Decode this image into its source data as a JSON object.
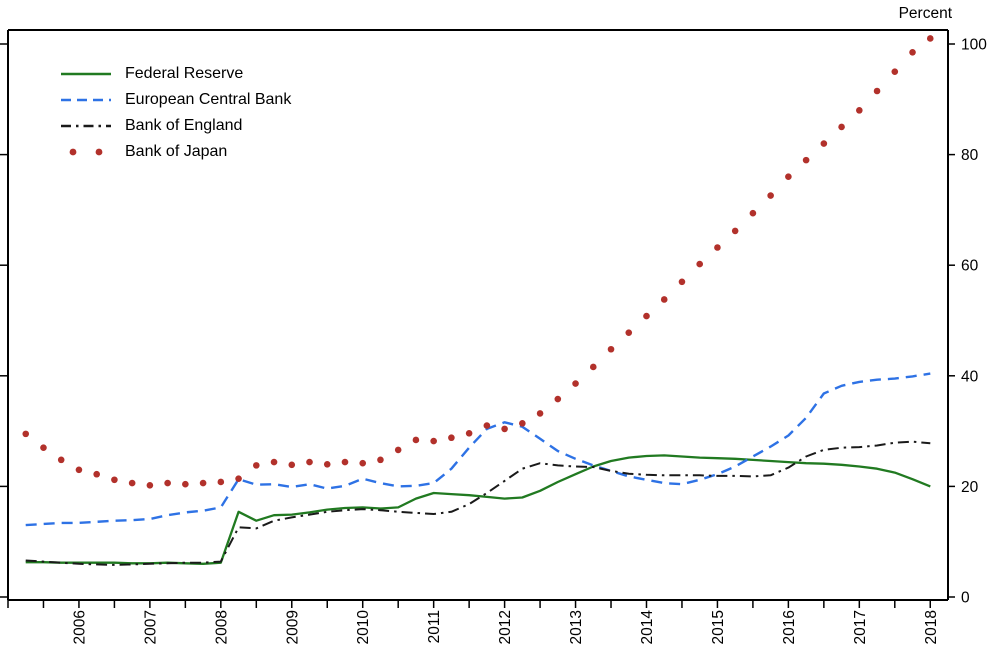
{
  "chart_data": {
    "type": "line",
    "title": "",
    "unit_label": "Percent",
    "xlabel": "",
    "ylabel": "Percent",
    "xlim": [
      2005.5,
      2018.75
    ],
    "ylim": [
      0,
      102
    ],
    "yticks": [
      0,
      20,
      40,
      60,
      80,
      100
    ],
    "xticks": [
      2006,
      2007,
      2008,
      2009,
      2010,
      2011,
      2012,
      2013,
      2014,
      2015,
      2016,
      2017,
      2018
    ],
    "x_minor_tick_step": 0.5,
    "grid": false,
    "legend_position": "top-left",
    "axis_color": "#000000",
    "x": [
      2005.75,
      2006,
      2006.25,
      2006.5,
      2006.75,
      2007,
      2007.25,
      2007.5,
      2007.75,
      2008,
      2008.25,
      2008.5,
      2008.75,
      2009,
      2009.25,
      2009.5,
      2009.75,
      2010,
      2010.25,
      2010.5,
      2010.75,
      2011,
      2011.25,
      2011.5,
      2011.75,
      2012,
      2012.25,
      2012.5,
      2012.75,
      2013,
      2013.25,
      2013.5,
      2013.75,
      2014,
      2014.25,
      2014.5,
      2014.75,
      2015,
      2015.25,
      2015.5,
      2015.75,
      2016,
      2016.25,
      2016.5,
      2016.75,
      2017,
      2017.25,
      2017.5,
      2017.75,
      2018,
      2018.25,
      2018.5
    ],
    "series": [
      {
        "name": "Federal Reserve",
        "color": "#217a21",
        "style": "solid",
        "values": [
          6.3,
          6.3,
          6.2,
          6.2,
          6.2,
          6.2,
          6.1,
          6.1,
          6.2,
          6.1,
          6.0,
          6.2,
          15.4,
          13.8,
          14.8,
          14.9,
          15.3,
          15.8,
          16.1,
          16.2,
          16.0,
          16.2,
          17.8,
          18.8,
          18.6,
          18.4,
          18.1,
          17.8,
          18.0,
          19.2,
          20.8,
          22.2,
          23.6,
          24.6,
          25.2,
          25.5,
          25.6,
          25.4,
          25.2,
          25.1,
          25.0,
          24.8,
          24.6,
          24.4,
          24.2,
          24.1,
          23.9,
          23.6,
          23.2,
          22.5,
          21.3,
          20.0
        ]
      },
      {
        "name": "European Central Bank",
        "color": "#2e72e5",
        "style": "dashed",
        "values": [
          13.0,
          13.2,
          13.4,
          13.4,
          13.6,
          13.8,
          13.9,
          14.1,
          14.8,
          15.3,
          15.6,
          16.2,
          21.3,
          20.3,
          20.4,
          19.9,
          20.4,
          19.6,
          20.1,
          21.4,
          20.6,
          20.0,
          20.1,
          20.6,
          23.2,
          27.0,
          30.4,
          31.6,
          30.8,
          28.6,
          26.4,
          25.0,
          23.8,
          22.8,
          21.8,
          21.2,
          20.6,
          20.4,
          21.2,
          22.2,
          23.6,
          25.4,
          27.2,
          29.2,
          32.4,
          36.8,
          38.2,
          38.9,
          39.3,
          39.5,
          39.9,
          40.4
        ]
      },
      {
        "name": "Bank of England",
        "color": "#1a1a1a",
        "style": "dashdot",
        "values": [
          6.6,
          6.4,
          6.2,
          6.0,
          5.9,
          5.8,
          5.9,
          6.0,
          6.1,
          6.2,
          6.2,
          6.4,
          12.6,
          12.4,
          13.8,
          14.4,
          14.9,
          15.4,
          15.7,
          15.9,
          15.7,
          15.4,
          15.2,
          15.0,
          15.4,
          16.8,
          18.8,
          21.0,
          23.2,
          24.2,
          23.8,
          23.6,
          23.5,
          22.8,
          22.3,
          22.1,
          22.0,
          22.0,
          22.0,
          21.9,
          21.9,
          21.8,
          22.0,
          23.4,
          25.4,
          26.6,
          27.0,
          27.1,
          27.4,
          27.9,
          28.1,
          27.8
        ]
      },
      {
        "name": "Bank of Japan",
        "color": "#b2312b",
        "style": "dots",
        "values": [
          29.5,
          27.0,
          24.8,
          23.0,
          22.2,
          21.2,
          20.6,
          20.2,
          20.6,
          20.4,
          20.6,
          20.8,
          21.4,
          23.8,
          24.4,
          23.9,
          24.4,
          24.0,
          24.4,
          24.2,
          24.8,
          26.6,
          28.4,
          28.2,
          28.8,
          29.6,
          31.0,
          30.4,
          31.4,
          33.2,
          35.8,
          38.6,
          41.6,
          44.8,
          47.8,
          50.8,
          53.8,
          57.0,
          60.2,
          63.2,
          66.2,
          69.4,
          72.6,
          76.0,
          79.0,
          82.0,
          85.0,
          88.0,
          91.5,
          95.0,
          98.5,
          101.0
        ]
      }
    ]
  }
}
